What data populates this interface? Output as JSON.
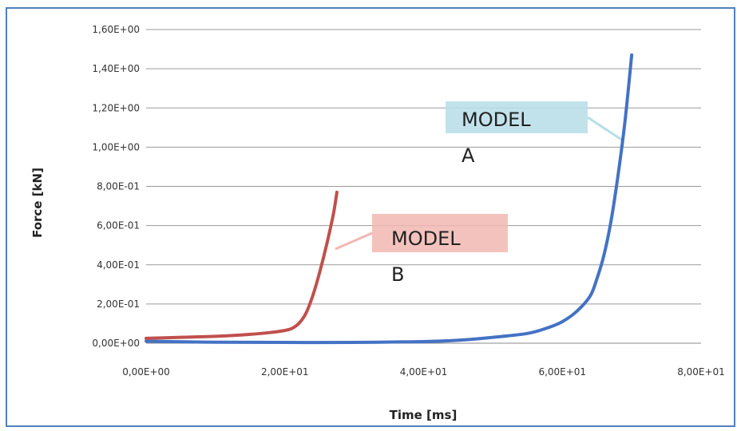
{
  "chart_data": {
    "type": "line",
    "xlabel": "Time  [ms]",
    "ylabel": "Force  [kN]",
    "xlim": [
      0,
      80
    ],
    "ylim": [
      0,
      1.6
    ],
    "x_tick_labels": [
      "0,00E+00",
      "2,00E+01",
      "4,00E+01",
      "6,00E+01",
      "8,00E+01"
    ],
    "x_tick_values": [
      0,
      20,
      40,
      60,
      80
    ],
    "y_tick_labels": [
      "0,00E+00",
      "2,00E-01",
      "4,00E-01",
      "6,00E-01",
      "8,00E-01",
      "1,00E+00",
      "1,20E+00",
      "1,40E+00",
      "1,60E+00"
    ],
    "y_tick_values": [
      0,
      0.2,
      0.4,
      0.6,
      0.8,
      1.0,
      1.2,
      1.4,
      1.6
    ],
    "grid": "horizontal",
    "series": [
      {
        "name": "MODEL A",
        "color": "#4472c4",
        "x": [
          0,
          10,
          20,
          30,
          40,
          45,
          50,
          55,
          58,
          60,
          62,
          64,
          65,
          66,
          67,
          68,
          69,
          70
        ],
        "y": [
          0.01,
          0.005,
          0.004,
          0.004,
          0.008,
          0.015,
          0.03,
          0.05,
          0.08,
          0.11,
          0.16,
          0.24,
          0.33,
          0.45,
          0.62,
          0.85,
          1.12,
          1.47
        ]
      },
      {
        "name": "MODEL B",
        "color": "#c0504d",
        "x": [
          0,
          5,
          10,
          15,
          18,
          20,
          21,
          22,
          23,
          24,
          25,
          26,
          27,
          27.5
        ],
        "y": [
          0.025,
          0.03,
          0.035,
          0.045,
          0.055,
          0.065,
          0.075,
          0.1,
          0.15,
          0.24,
          0.36,
          0.5,
          0.66,
          0.77
        ]
      }
    ],
    "annotations": [
      {
        "line1": "MODEL",
        "line2": "A",
        "color": "#b7dde8"
      },
      {
        "line1": "MODEL",
        "line2": "B",
        "color": "#f2b7b1"
      }
    ]
  }
}
